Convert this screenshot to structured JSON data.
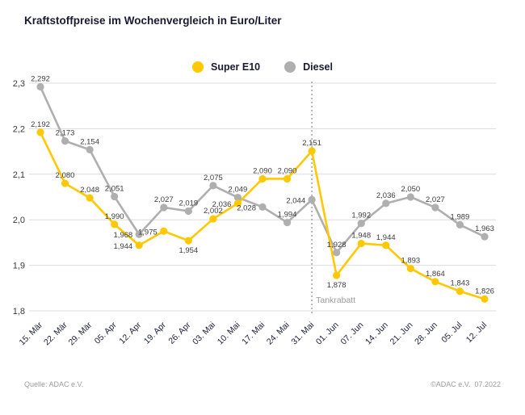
{
  "title": "Kraftstoffpreise im Wochenvergleich in Euro/Liter",
  "footer": {
    "left": "Quelle: ADAC e.V.",
    "right": "©ADAC e.V.  07.2022"
  },
  "annotation": {
    "label": "Tankrabatt",
    "at_category": "31. Mai"
  },
  "colors": {
    "grid": "#dcdcdc",
    "axis_text": "#1e1e38",
    "tick_text": "#3a3a3a",
    "value_label": "#3c3c3c",
    "muted": "#9a9a9a"
  },
  "chart_data": {
    "type": "line",
    "title": "Kraftstoffpreise im Wochenvergleich in Euro/Liter",
    "xlabel": "",
    "ylabel": "Euro/Liter",
    "ylim": [
      1.8,
      2.3
    ],
    "yticks": [
      1.8,
      1.9,
      2.0,
      2.1,
      2.2,
      2.3
    ],
    "grid": true,
    "legend_position": "top",
    "decimal_separator": ",",
    "categories": [
      "15. Mär",
      "22. Mär",
      "29. Mär",
      "05. Apr",
      "12. Apr",
      "19. Apr",
      "26. Apr",
      "03. Mai",
      "10. Mai",
      "17. Mai",
      "24. Mai",
      "31. Mai",
      "01. Jun",
      "07. Jun",
      "14. Jun",
      "21. Jun",
      "28. Jun",
      "05. Jul",
      "12. Jul"
    ],
    "series": [
      {
        "name": "Super E10",
        "color": "#FFC800",
        "values": [
          2.192,
          2.08,
          2.048,
          1.99,
          1.944,
          1.975,
          1.954,
          2.002,
          2.036,
          2.09,
          2.09,
          2.151,
          1.878,
          1.948,
          1.944,
          1.893,
          1.864,
          1.843,
          1.826
        ],
        "label_positions": [
          "above",
          "above",
          "above",
          "above",
          "left",
          "left",
          "below",
          "above",
          "left",
          "above",
          "above",
          "above",
          "below",
          "above",
          "above",
          "above",
          "above",
          "above",
          "above"
        ]
      },
      {
        "name": "Diesel",
        "color": "#AFAFAF",
        "values": [
          2.292,
          2.173,
          2.154,
          2.051,
          1.968,
          2.027,
          2.019,
          2.075,
          2.049,
          2.028,
          1.994,
          2.044,
          1.928,
          1.992,
          2.036,
          2.05,
          2.027,
          1.989,
          1.963
        ],
        "label_positions": [
          "above",
          "above",
          "above",
          "above",
          "left",
          "above",
          "above",
          "above",
          "above",
          "left",
          "above",
          "left",
          "above",
          "above",
          "above",
          "above",
          "above",
          "above",
          "above"
        ]
      }
    ]
  }
}
